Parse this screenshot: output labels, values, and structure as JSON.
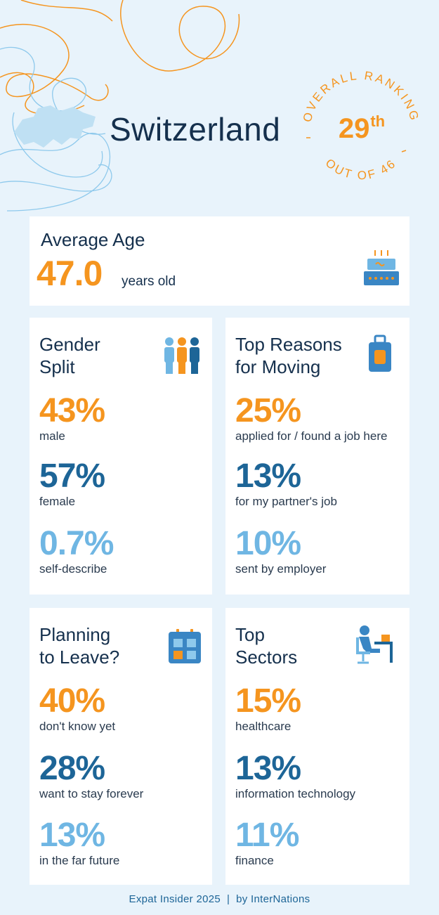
{
  "header": {
    "country": "Switzerland",
    "rank_arc_top": "OVERALL RANKING",
    "rank_number": "29",
    "rank_suffix": "th",
    "rank_arc_bottom": "OUT OF 46"
  },
  "average_age": {
    "title": "Average Age",
    "value": "47.0",
    "unit": "years old",
    "icon": "cake-icon"
  },
  "gender_split": {
    "title_line1": "Gender",
    "title_line2": "Split",
    "icon": "people-icon",
    "stats": [
      {
        "value": "43%",
        "label": "male"
      },
      {
        "value": "57%",
        "label": "female"
      },
      {
        "value": "0.7%",
        "label": "self-describe"
      }
    ]
  },
  "top_reasons": {
    "title_line1": "Top Reasons",
    "title_line2": "for Moving",
    "icon": "suitcase-icon",
    "stats": [
      {
        "value": "25%",
        "label": "applied for / found a job here"
      },
      {
        "value": "13%",
        "label": "for my partner's job"
      },
      {
        "value": "10%",
        "label": "sent by employer"
      }
    ]
  },
  "planning_to_leave": {
    "title_line1": "Planning",
    "title_line2": "to Leave?",
    "icon": "calendar-icon",
    "stats": [
      {
        "value": "40%",
        "label": "don't know yet"
      },
      {
        "value": "28%",
        "label": "want to stay forever"
      },
      {
        "value": "13%",
        "label": "in the far future"
      }
    ]
  },
  "top_sectors": {
    "title_line1": "Top",
    "title_line2": "Sectors",
    "icon": "desk-worker-icon",
    "stats": [
      {
        "value": "15%",
        "label": "healthcare"
      },
      {
        "value": "13%",
        "label": "information technology"
      },
      {
        "value": "11%",
        "label": "finance"
      }
    ]
  },
  "footer": {
    "text": "Expat Insider 2025  |  by InterNations"
  },
  "colors": {
    "accent_orange": "#f5951f",
    "dark_blue": "#1d6597",
    "light_blue": "#6fb6e3",
    "background": "#e8f3fb"
  }
}
